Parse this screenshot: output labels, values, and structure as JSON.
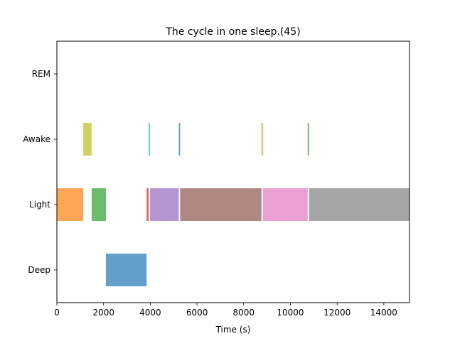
{
  "chart_data": {
    "type": "bar",
    "orientation": "horizontal",
    "title": "The cycle in one sleep.(45)",
    "xlabel": "Time (s)",
    "ylabel": "",
    "xlim": [
      0,
      15100
    ],
    "x_ticks": [
      0,
      2000,
      4000,
      6000,
      8000,
      10000,
      12000,
      14000
    ],
    "categories": [
      "Deep",
      "Light",
      "Awake",
      "REM"
    ],
    "grid": false,
    "legend": "none",
    "segments": [
      {
        "stage": "Light",
        "start": 0,
        "end": 1130,
        "color": "#ff7f0e"
      },
      {
        "stage": "Awake",
        "start": 1130,
        "end": 1490,
        "color": "#bcbd22"
      },
      {
        "stage": "Light",
        "start": 1490,
        "end": 2100,
        "color": "#2ca02c"
      },
      {
        "stage": "Deep",
        "start": 2100,
        "end": 3840,
        "color": "#1f77b4"
      },
      {
        "stage": "Light",
        "start": 3840,
        "end": 3930,
        "color": "#d62728"
      },
      {
        "stage": "Awake",
        "start": 3930,
        "end": 3990,
        "color": "#17becf"
      },
      {
        "stage": "Light",
        "start": 3990,
        "end": 5220,
        "color": "#9467bd"
      },
      {
        "stage": "Awake",
        "start": 5220,
        "end": 5280,
        "color": "#1f77b4"
      },
      {
        "stage": "Light",
        "start": 5280,
        "end": 8760,
        "color": "#8c564b"
      },
      {
        "stage": "Awake",
        "start": 8760,
        "end": 8820,
        "color": "#ff7f0e"
      },
      {
        "stage": "Light",
        "start": 8820,
        "end": 10740,
        "color": "#e377c2"
      },
      {
        "stage": "Awake",
        "start": 10740,
        "end": 10800,
        "color": "#2ca02c"
      },
      {
        "stage": "Light",
        "start": 10800,
        "end": 15100,
        "color": "#7f7f7f"
      }
    ]
  }
}
